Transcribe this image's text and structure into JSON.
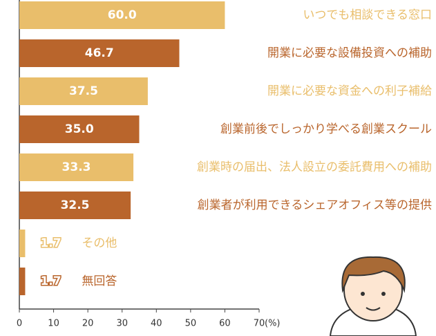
{
  "chart_data": {
    "type": "bar",
    "orientation": "horizontal",
    "categories": [
      "いつでも相談できる窓口",
      "開業に必要な設備投資への補助",
      "開業に必要な資金への利子補給",
      "創業前後でしっかり学べる創業スクール",
      "創業時の届出、法人設立の委託費用への補助",
      "創業者が利用できるシェアオフィス等の提供",
      "その他",
      "無回答"
    ],
    "values": [
      60.0,
      46.7,
      37.5,
      35.0,
      33.3,
      32.5,
      1.7,
      1.7
    ],
    "value_labels": [
      "60.0",
      "46.7",
      "37.5",
      "35.0",
      "33.3",
      "32.5",
      "1.7",
      "1.7"
    ],
    "colors": [
      "#e9be6b",
      "#b9652c",
      "#e9be6b",
      "#b9652c",
      "#e9be6b",
      "#b9652c",
      "#e9be6b",
      "#b9652c"
    ],
    "xlim": [
      0,
      70
    ],
    "xticks": [
      0,
      10,
      20,
      30,
      40,
      50,
      60,
      70
    ],
    "x_label": "(%)"
  }
}
